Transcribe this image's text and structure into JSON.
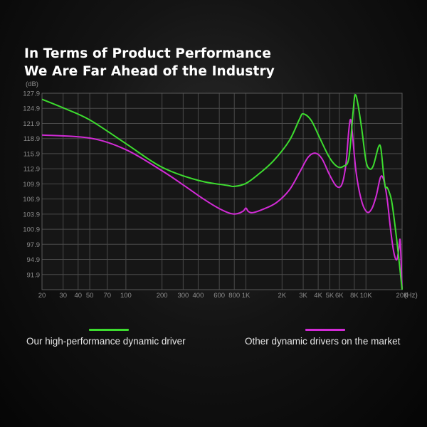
{
  "headline": {
    "line1": "In Terms of Product Performance",
    "line2": "We Are Far Ahead of the Industry"
  },
  "chart_data": {
    "type": "line",
    "ylabel": "(dB)",
    "xunit": "(Hz)",
    "xscale": "log",
    "xlim": [
      20,
      20000
    ],
    "ylim": [
      88.9,
      127.9
    ],
    "grid": true,
    "y_ticks": [
      127.9,
      124.9,
      121.9,
      118.9,
      115.9,
      112.9,
      109.9,
      106.9,
      103.9,
      100.9,
      97.9,
      94.9,
      91.9
    ],
    "y_tick_labels": [
      "127.9",
      "124.9",
      "121.9",
      "118.9",
      "115.9",
      "112.9",
      "109.9",
      "106.9",
      "103.9",
      "100.9",
      "97.9",
      "94.9",
      "91.9"
    ],
    "x_ticks": [
      20,
      30,
      40,
      50,
      70,
      100,
      200,
      300,
      400,
      600,
      800,
      1000,
      2000,
      3000,
      4000,
      5000,
      6000,
      8000,
      10000,
      20000
    ],
    "x_tick_labels": [
      "20",
      "30",
      "40",
      "50",
      "70",
      "100",
      "200",
      "300",
      "400",
      "600",
      "800",
      "1K",
      "2K",
      "3K",
      "4K",
      "5K",
      "6K",
      "8K",
      "10K",
      "20K"
    ],
    "legend_position": "bottom",
    "series": [
      {
        "name": "Our high-performance dynamic driver",
        "color": "#3ddc2f",
        "points": [
          [
            20,
            126.7
          ],
          [
            30,
            125.0
          ],
          [
            50,
            122.6
          ],
          [
            100,
            117.9
          ],
          [
            200,
            113.2
          ],
          [
            400,
            110.6
          ],
          [
            700,
            109.6
          ],
          [
            800,
            109.4
          ],
          [
            1000,
            110.0
          ],
          [
            1300,
            112.0
          ],
          [
            1700,
            114.5
          ],
          [
            2300,
            118.5
          ],
          [
            2800,
            122.8
          ],
          [
            3000,
            123.8
          ],
          [
            3500,
            122.5
          ],
          [
            4200,
            118.6
          ],
          [
            5000,
            115.0
          ],
          [
            5800,
            113.3
          ],
          [
            6500,
            113.4
          ],
          [
            7200,
            115.0
          ],
          [
            7800,
            124.0
          ],
          [
            8100,
            127.5
          ],
          [
            8500,
            126.2
          ],
          [
            9200,
            121.0
          ],
          [
            10000,
            114.5
          ],
          [
            10700,
            112.9
          ],
          [
            11500,
            113.5
          ],
          [
            12700,
            117.2
          ],
          [
            13300,
            117.0
          ],
          [
            14000,
            112.0
          ],
          [
            14500,
            109.3
          ],
          [
            15000,
            109.2
          ],
          [
            15600,
            108.3
          ],
          [
            16500,
            106.0
          ],
          [
            18000,
            99.0
          ],
          [
            19500,
            91.5
          ],
          [
            20000,
            89.0
          ]
        ]
      },
      {
        "name": "Other dynamic drivers on the market",
        "color": "#d22bd6",
        "points": [
          [
            20,
            119.6
          ],
          [
            50,
            119.0
          ],
          [
            100,
            116.7
          ],
          [
            200,
            112.5
          ],
          [
            300,
            109.7
          ],
          [
            450,
            106.8
          ],
          [
            600,
            105.0
          ],
          [
            750,
            104.0
          ],
          [
            850,
            104.0
          ],
          [
            950,
            104.5
          ],
          [
            1000,
            105.1
          ],
          [
            1050,
            104.4
          ],
          [
            1150,
            104.2
          ],
          [
            1400,
            104.9
          ],
          [
            1800,
            106.2
          ],
          [
            2300,
            108.7
          ],
          [
            2800,
            112.2
          ],
          [
            3300,
            115.2
          ],
          [
            3800,
            116.0
          ],
          [
            4300,
            114.9
          ],
          [
            5000,
            111.6
          ],
          [
            5700,
            109.4
          ],
          [
            6300,
            109.8
          ],
          [
            6800,
            113.7
          ],
          [
            7200,
            120.6
          ],
          [
            7450,
            122.7
          ],
          [
            7700,
            120.0
          ],
          [
            8300,
            112.0
          ],
          [
            9200,
            106.5
          ],
          [
            10200,
            104.3
          ],
          [
            11200,
            105.0
          ],
          [
            12200,
            107.6
          ],
          [
            13200,
            111.2
          ],
          [
            14000,
            110.8
          ],
          [
            15000,
            107.0
          ],
          [
            16000,
            101.0
          ],
          [
            17000,
            96.5
          ],
          [
            18000,
            94.8
          ],
          [
            18800,
            97.0
          ],
          [
            19300,
            98.5
          ],
          [
            20000,
            89.0
          ]
        ]
      }
    ]
  }
}
